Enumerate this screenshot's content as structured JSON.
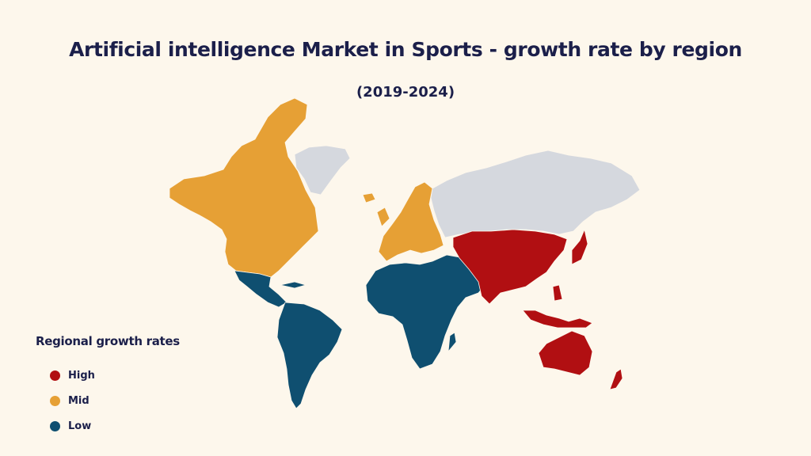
{
  "title": "Artificial intelligence Market in Sports - growth rate by region",
  "subtitle": "(2019-2024)",
  "colors": {
    "background": "#fdf7ec",
    "high": "#b10f12",
    "mid": "#e6a035",
    "low": "#0f4f70",
    "no_data": "#d5d8de",
    "text": "#1b1f4a"
  },
  "legend": {
    "title": "Regional growth rates",
    "items": [
      {
        "label": "High",
        "color": "#b10f12"
      },
      {
        "label": "Mid",
        "color": "#e6a035"
      },
      {
        "label": "Low",
        "color": "#0f4f70"
      }
    ]
  },
  "regions": {
    "north_america": "Mid",
    "europe": "Mid",
    "latin_america": "Low",
    "middle_east_africa": "Low",
    "asia_pacific": "High",
    "russia": "no data",
    "greenland": "no data"
  }
}
